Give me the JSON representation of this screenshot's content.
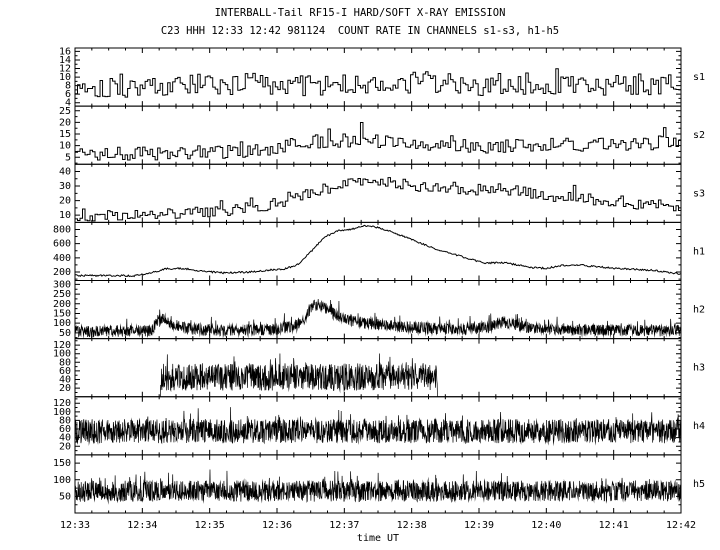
{
  "header": {
    "title": "INTERBALL-Tail RF15-I HARD/SOFT X-RAY EMISSION",
    "subtitle": "C23 HHH 12:33 12:42 981124  COUNT RATE IN CHANNELS s1-s3, h1-h5"
  },
  "chart_data": {
    "type": "line",
    "title": "INTERBALL-Tail RF15-I HARD/SOFT X-RAY EMISSION",
    "subtitle": "C23 HHH 12:33 12:42 981124  COUNT RATE IN CHANNELS s1-s3, h1-h5",
    "xlabel": "time UT",
    "x_range_minutes": [
      0,
      9
    ],
    "x_ticks": [
      "12:33",
      "12:34",
      "12:35",
      "12:36",
      "12:37",
      "12:38",
      "12:39",
      "12:40",
      "12:41",
      "12:42"
    ],
    "grid": false,
    "legend": "panel labels on right side",
    "line_color": "#000000",
    "panels": [
      {
        "label": "s1",
        "style": "step",
        "samples": 242,
        "seed": 101,
        "y_range": [
          3.2,
          16.8
        ],
        "y_ticks": [
          4,
          6,
          8,
          10,
          12,
          14,
          16
        ],
        "noise": 2.6,
        "clip": [
          3.5,
          16.3
        ],
        "spike_prob": 0.05,
        "spike_amp": 4.5,
        "line_width": 1,
        "keypoints": [
          [
            0,
            8
          ],
          [
            1,
            7.6
          ],
          [
            2,
            8.2
          ],
          [
            3,
            8.4
          ],
          [
            4,
            8.0
          ],
          [
            5,
            8.8
          ],
          [
            6,
            8.2
          ],
          [
            7,
            8.6
          ],
          [
            8,
            8.2
          ],
          [
            9,
            8.6
          ]
        ]
      },
      {
        "label": "s2",
        "style": "step",
        "samples": 242,
        "seed": 102,
        "y_range": [
          2,
          27
        ],
        "y_ticks": [
          5,
          10,
          15,
          20,
          25
        ],
        "noise": 3.0,
        "clip": [
          2.4,
          26
        ],
        "spike_prob": 0.05,
        "spike_amp": 6,
        "line_width": 1,
        "keypoints": [
          [
            0,
            6
          ],
          [
            1,
            6.5
          ],
          [
            2,
            7
          ],
          [
            2.8,
            8
          ],
          [
            3.3,
            11
          ],
          [
            4,
            12.5
          ],
          [
            4.7,
            11.5
          ],
          [
            5.5,
            9.5
          ],
          [
            6.5,
            10
          ],
          [
            7.5,
            10.5
          ],
          [
            8.5,
            11
          ],
          [
            9,
            12.5
          ]
        ]
      },
      {
        "label": "s3",
        "style": "step",
        "samples": 242,
        "seed": 103,
        "y_range": [
          5,
          45
        ],
        "y_ticks": [
          10,
          20,
          30,
          40
        ],
        "noise": 3.8,
        "clip": [
          5.5,
          44
        ],
        "spike_prob": 0.04,
        "spike_amp": 7,
        "line_width": 1,
        "keypoints": [
          [
            0,
            9
          ],
          [
            0.7,
            10
          ],
          [
            1.5,
            11
          ],
          [
            2.2,
            13
          ],
          [
            2.8,
            16
          ],
          [
            3.3,
            22
          ],
          [
            3.7,
            28
          ],
          [
            4.1,
            33
          ],
          [
            4.6,
            33
          ],
          [
            5.1,
            30
          ],
          [
            5.6,
            29
          ],
          [
            6.1,
            27
          ],
          [
            6.6,
            27
          ],
          [
            7.1,
            23
          ],
          [
            7.6,
            21
          ],
          [
            8.1,
            19
          ],
          [
            8.6,
            17
          ],
          [
            9,
            16
          ]
        ]
      },
      {
        "label": "h1",
        "style": "line",
        "samples": 620,
        "seed": 104,
        "y_range": [
          80,
          900
        ],
        "y_ticks": [
          200,
          400,
          600,
          800
        ],
        "noise": 12,
        "clip": [
          95,
          888
        ],
        "spike_prob": 0,
        "spike_amp": 0,
        "line_width": 1,
        "keypoints": [
          [
            0,
            150
          ],
          [
            0.9,
            148
          ],
          [
            1.1,
            180
          ],
          [
            1.35,
            245
          ],
          [
            1.6,
            250
          ],
          [
            1.9,
            210
          ],
          [
            2.2,
            188
          ],
          [
            2.6,
            200
          ],
          [
            2.9,
            228
          ],
          [
            3.1,
            238
          ],
          [
            3.3,
            300
          ],
          [
            3.5,
            480
          ],
          [
            3.7,
            690
          ],
          [
            3.9,
            780
          ],
          [
            4.1,
            800
          ],
          [
            4.3,
            855
          ],
          [
            4.5,
            830
          ],
          [
            4.7,
            770
          ],
          [
            5.0,
            655
          ],
          [
            5.3,
            545
          ],
          [
            5.6,
            455
          ],
          [
            5.9,
            375
          ],
          [
            6.1,
            325
          ],
          [
            6.35,
            335
          ],
          [
            6.6,
            295
          ],
          [
            6.8,
            262
          ],
          [
            7.0,
            252
          ],
          [
            7.25,
            295
          ],
          [
            7.5,
            298
          ],
          [
            7.75,
            275
          ],
          [
            8.0,
            252
          ],
          [
            8.3,
            242
          ],
          [
            8.6,
            222
          ],
          [
            9,
            172
          ]
        ]
      },
      {
        "label": "h2",
        "style": "line",
        "samples": 1900,
        "seed": 105,
        "y_range": [
          20,
          320
        ],
        "y_ticks": [
          50,
          100,
          150,
          200,
          250,
          300
        ],
        "noise": 30,
        "clip": [
          22,
          312
        ],
        "spike_prob": 0.06,
        "spike_amp": 55,
        "line_width": 0.7,
        "keypoints": [
          [
            0,
            58
          ],
          [
            1.1,
            60
          ],
          [
            1.3,
            125
          ],
          [
            1.45,
            95
          ],
          [
            1.65,
            72
          ],
          [
            2.0,
            62
          ],
          [
            3.0,
            66
          ],
          [
            3.35,
            95
          ],
          [
            3.5,
            175
          ],
          [
            3.62,
            205
          ],
          [
            3.8,
            155
          ],
          [
            4.0,
            122
          ],
          [
            4.3,
            100
          ],
          [
            4.7,
            85
          ],
          [
            5.2,
            75
          ],
          [
            5.8,
            68
          ],
          [
            6.15,
            78
          ],
          [
            6.35,
            108
          ],
          [
            6.55,
            90
          ],
          [
            6.85,
            72
          ],
          [
            7.5,
            66
          ],
          [
            8.2,
            62
          ],
          [
            9,
            60
          ]
        ]
      },
      {
        "label": "h3",
        "style": "line",
        "samples": 1900,
        "seed": 106,
        "y_range": [
          0,
          135
        ],
        "y_ticks": [
          20,
          40,
          60,
          80,
          100,
          120
        ],
        "noise": 32,
        "clip": [
          2,
          126
        ],
        "spike_prob": 0.06,
        "spike_amp": 30,
        "line_width": 0.7,
        "active_range": [
          1.27,
          5.38
        ],
        "keypoints": [
          [
            0,
            46
          ],
          [
            9,
            46
          ]
        ]
      },
      {
        "label": "h4",
        "style": "line",
        "samples": 2000,
        "seed": 107,
        "y_range": [
          0,
          135
        ],
        "y_ticks": [
          20,
          40,
          60,
          80,
          100,
          120
        ],
        "noise": 28,
        "clip": [
          4,
          128
        ],
        "spike_prob": 0.05,
        "spike_amp": 32,
        "line_width": 0.7,
        "keypoints": [
          [
            0,
            55
          ],
          [
            9,
            55
          ]
        ]
      },
      {
        "label": "h5",
        "style": "line",
        "samples": 2000,
        "seed": 108,
        "y_range": [
          0,
          175
        ],
        "y_ticks": [
          50,
          100,
          150
        ],
        "noise": 32,
        "clip": [
          5,
          168
        ],
        "spike_prob": 0.05,
        "spike_amp": 38,
        "line_width": 0.7,
        "keypoints": [
          [
            0,
            66
          ],
          [
            9,
            66
          ]
        ]
      }
    ]
  }
}
